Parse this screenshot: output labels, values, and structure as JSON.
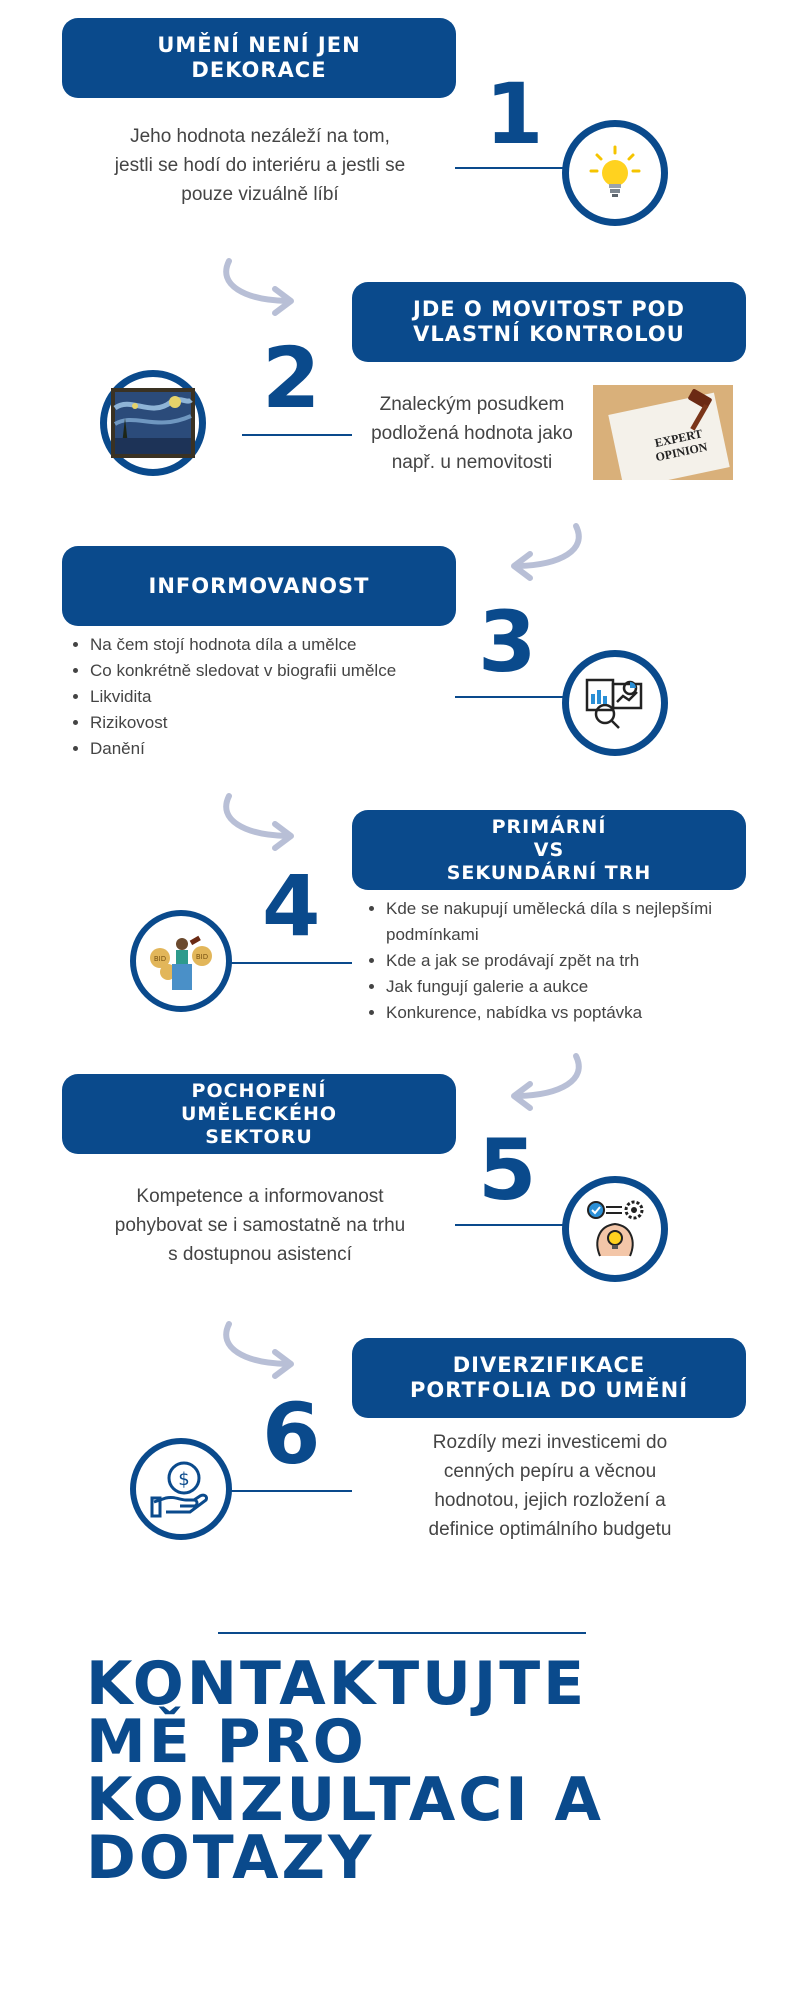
{
  "colors": {
    "primary": "#0a4a8c",
    "arrow": "#b8bfd6",
    "text": "#444444"
  },
  "sections": [
    {
      "title": "UMĚNÍ NENÍ JEN\nDEKORACE",
      "number": "1",
      "icon": "lightbulb-icon",
      "description": "Jeho hodnota nezáleží na tom,\njestli se hodí do interiéru a jestli se\npouze vizuálně líbí"
    },
    {
      "title": "JDE O MOVITOST POD\nVLASTNÍ KONTROLOU",
      "number": "2",
      "icon": "painting-icon",
      "description": "Znaleckým posudkem\npodložená hodnota jako\nnapř. u nemovitosti",
      "image_text": "EXPERT\nOPINION"
    },
    {
      "title": "INFORMOVANOST",
      "number": "3",
      "icon": "analytics-icon",
      "bullets": [
        "Na čem stojí hodnota díla a umělce",
        "Co konkrétně sledovat v biografii umělce",
        "Likvidita",
        "Rizikovost",
        "Danění"
      ]
    },
    {
      "title": "PRIMÁRNÍ\nVS\nSEKUNDÁRNÍ TRH",
      "number": "4",
      "icon": "auction-icon",
      "bullets": [
        "Kde se nakupují umělecká díla s nejlepšími podmínkami",
        "Kde a jak se prodávají zpět na trh",
        "Jak fungují galerie a aukce",
        "Konkurence, nabídka vs poptávka"
      ]
    },
    {
      "title": "POCHOPENÍ\nUMĚLECKÉHO\nSEKTORU",
      "number": "5",
      "icon": "strategy-icon",
      "description": "Kompetence a informovanost\npohybovat se i samostatně na trhu\ns dostupnou asistencí"
    },
    {
      "title": "DIVERZIFIKACE\nPORTFOLIA DO UMĚNÍ",
      "number": "6",
      "icon": "investment-hand-icon",
      "description": "Rozdíly mezi investicemi do\ncenných pepíru a věcnou\nhodnotou, jejich rozložení a\ndefinice optimálního budgetu"
    }
  ],
  "contact": {
    "text": "KONTAKTUJTE\nMĚ PRO\nKONZULTACI A\nDOTAZY"
  },
  "icon_labels": {
    "bid": "BID"
  }
}
